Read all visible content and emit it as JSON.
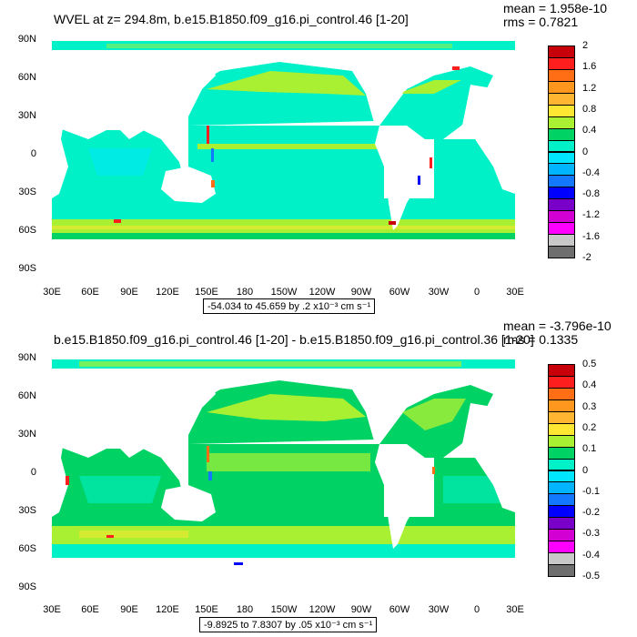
{
  "panel1": {
    "title": "WVEL at z= 294.8m, b.e15.B1850.f09_g16.pi_control.46 [1-20]",
    "mean": "mean = 1.958e-10",
    "rms": "rms = 0.7821",
    "range_label": "-54.034 to 45.659 by .2 x10⁻³ cm s⁻¹",
    "colorbar": {
      "labels": [
        "2",
        "1.6",
        "1.2",
        "0.8",
        "0.4",
        "0",
        "-0.4",
        "-0.8",
        "-1.2",
        "-1.6",
        "-2"
      ],
      "colors": [
        "#c8000a",
        "#ff1e1e",
        "#ff6e14",
        "#ff961e",
        "#ffb432",
        "#ffe632",
        "#aaf032",
        "#00d264",
        "#00f0c8",
        "#00e6ff",
        "#00b4ff",
        "#1478ff",
        "#0000ff",
        "#7800c8",
        "#d200d2",
        "#ff00ff",
        "#c8c8c8",
        "#6e6e6e"
      ]
    }
  },
  "panel2": {
    "title": "b.e15.B1850.f09_g16.pi_control.46 [1-20] - b.e15.B1850.f09_g16.pi_control.36 [1-20]",
    "mean": "mean = -3.796e-10",
    "rms": "rms = 0.1335",
    "range_label": "-9.8925 to 7.8307 by .05 x10⁻³ cm s⁻¹",
    "colorbar": {
      "labels": [
        "0.5",
        "0.4",
        "0.3",
        "0.2",
        "0.1",
        "0",
        "-0.1",
        "-0.2",
        "-0.3",
        "-0.4",
        "-0.5"
      ],
      "colors": [
        "#c8000a",
        "#ff1e1e",
        "#ff6e14",
        "#ff961e",
        "#ffb432",
        "#ffe632",
        "#aaf032",
        "#00d264",
        "#00f0c8",
        "#00e6ff",
        "#00b4ff",
        "#1478ff",
        "#0000ff",
        "#7800c8",
        "#d200d2",
        "#ff00ff",
        "#c8c8c8",
        "#6e6e6e"
      ]
    }
  },
  "axes": {
    "lat_ticks": [
      "90N",
      "60N",
      "30N",
      "0",
      "30S",
      "60S",
      "90S"
    ],
    "lon_ticks": [
      "30E",
      "60E",
      "90E",
      "120E",
      "150E",
      "180",
      "150W",
      "120W",
      "90W",
      "60W",
      "30W",
      "0",
      "30E"
    ]
  },
  "chart_data": [
    {
      "type": "heatmap",
      "title": "WVEL at z= 294.8m, b.e15.B1850.f09_g16.pi_control.46 [1-20]",
      "variable": "WVEL",
      "units": "x10⁻³ cm s⁻¹",
      "xlabel": "",
      "ylabel": "",
      "x_ticks": [
        "30E",
        "60E",
        "90E",
        "120E",
        "150E",
        "180",
        "150W",
        "120W",
        "90W",
        "60W",
        "30W",
        "0",
        "30E"
      ],
      "y_ticks": [
        "90N",
        "60N",
        "30N",
        "0",
        "30S",
        "60S",
        "90S"
      ],
      "contour_levels": [
        -2,
        -1.6,
        -1.2,
        -0.8,
        -0.4,
        0,
        0.4,
        0.8,
        1.2,
        1.6,
        2
      ],
      "min": -54.034,
      "max": 45.659,
      "interval": 0.2,
      "mean": 1.958e-10,
      "rms": 0.7821
    },
    {
      "type": "heatmap",
      "title": "b.e15.B1850.f09_g16.pi_control.46 [1-20] - b.e15.B1850.f09_g16.pi_control.36 [1-20]",
      "variable": "WVEL difference",
      "units": "x10⁻³ cm s⁻¹",
      "xlabel": "",
      "ylabel": "",
      "x_ticks": [
        "30E",
        "60E",
        "90E",
        "120E",
        "150E",
        "180",
        "150W",
        "120W",
        "90W",
        "60W",
        "30W",
        "0",
        "30E"
      ],
      "y_ticks": [
        "90N",
        "60N",
        "30N",
        "0",
        "30S",
        "60S",
        "90S"
      ],
      "contour_levels": [
        -0.5,
        -0.4,
        -0.3,
        -0.2,
        -0.1,
        0,
        0.1,
        0.2,
        0.3,
        0.4,
        0.5
      ],
      "min": -9.8925,
      "max": 7.8307,
      "interval": 0.05,
      "mean": -3.796e-10,
      "rms": 0.1335
    }
  ]
}
